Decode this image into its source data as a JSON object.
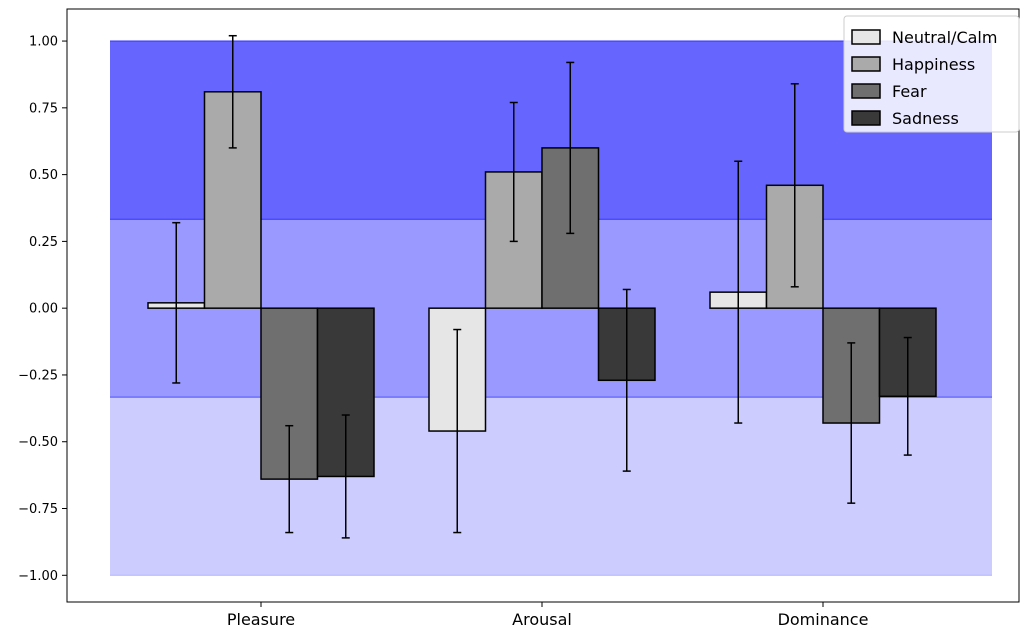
{
  "chart_data": {
    "type": "bar",
    "categories": [
      "Pleasure",
      "Arousal",
      "Dominance"
    ],
    "series": [
      {
        "name": "Neutral/Calm",
        "color": "#e6e6e6",
        "values": [
          0.02,
          -0.46,
          0.06
        ],
        "err_low": [
          -0.28,
          -0.84,
          -0.43
        ],
        "err_high": [
          0.32,
          -0.08,
          0.55
        ]
      },
      {
        "name": "Happiness",
        "color": "#aaaaaa",
        "values": [
          0.81,
          0.51,
          0.46
        ],
        "err_low": [
          0.6,
          0.25,
          0.08
        ],
        "err_high": [
          1.02,
          0.77,
          0.84
        ]
      },
      {
        "name": "Fear",
        "color": "#6f6f6f",
        "values": [
          -0.64,
          0.6,
          -0.43
        ],
        "err_low": [
          -0.84,
          0.28,
          -0.73
        ],
        "err_high": [
          -0.44,
          0.92,
          -0.13
        ]
      },
      {
        "name": "Sadness",
        "color": "#393939",
        "values": [
          -0.63,
          -0.27,
          -0.33
        ],
        "err_low": [
          -0.86,
          -0.61,
          -0.55
        ],
        "err_high": [
          -0.4,
          0.07,
          -0.11
        ]
      }
    ],
    "bands": [
      {
        "from": -1.0,
        "to": -0.333,
        "color": "#ccccff"
      },
      {
        "from": -0.333,
        "to": 0.333,
        "color": "#9999ff"
      },
      {
        "from": 0.333,
        "to": 1.0,
        "color": "#6666ff"
      }
    ],
    "yticks": [
      "1.00",
      "0.75",
      "0.50",
      "0.25",
      "0.00",
      "−0.25",
      "−0.50",
      "−0.75",
      "−1.00"
    ],
    "ytick_values": [
      1.0,
      0.75,
      0.5,
      0.25,
      0.0,
      -0.25,
      -0.5,
      -0.75,
      -1.0
    ],
    "ylim": [
      -1.1,
      1.12
    ],
    "xlabel": "",
    "ylabel": "",
    "title": "",
    "grid": false,
    "legend_position": "top-right"
  }
}
